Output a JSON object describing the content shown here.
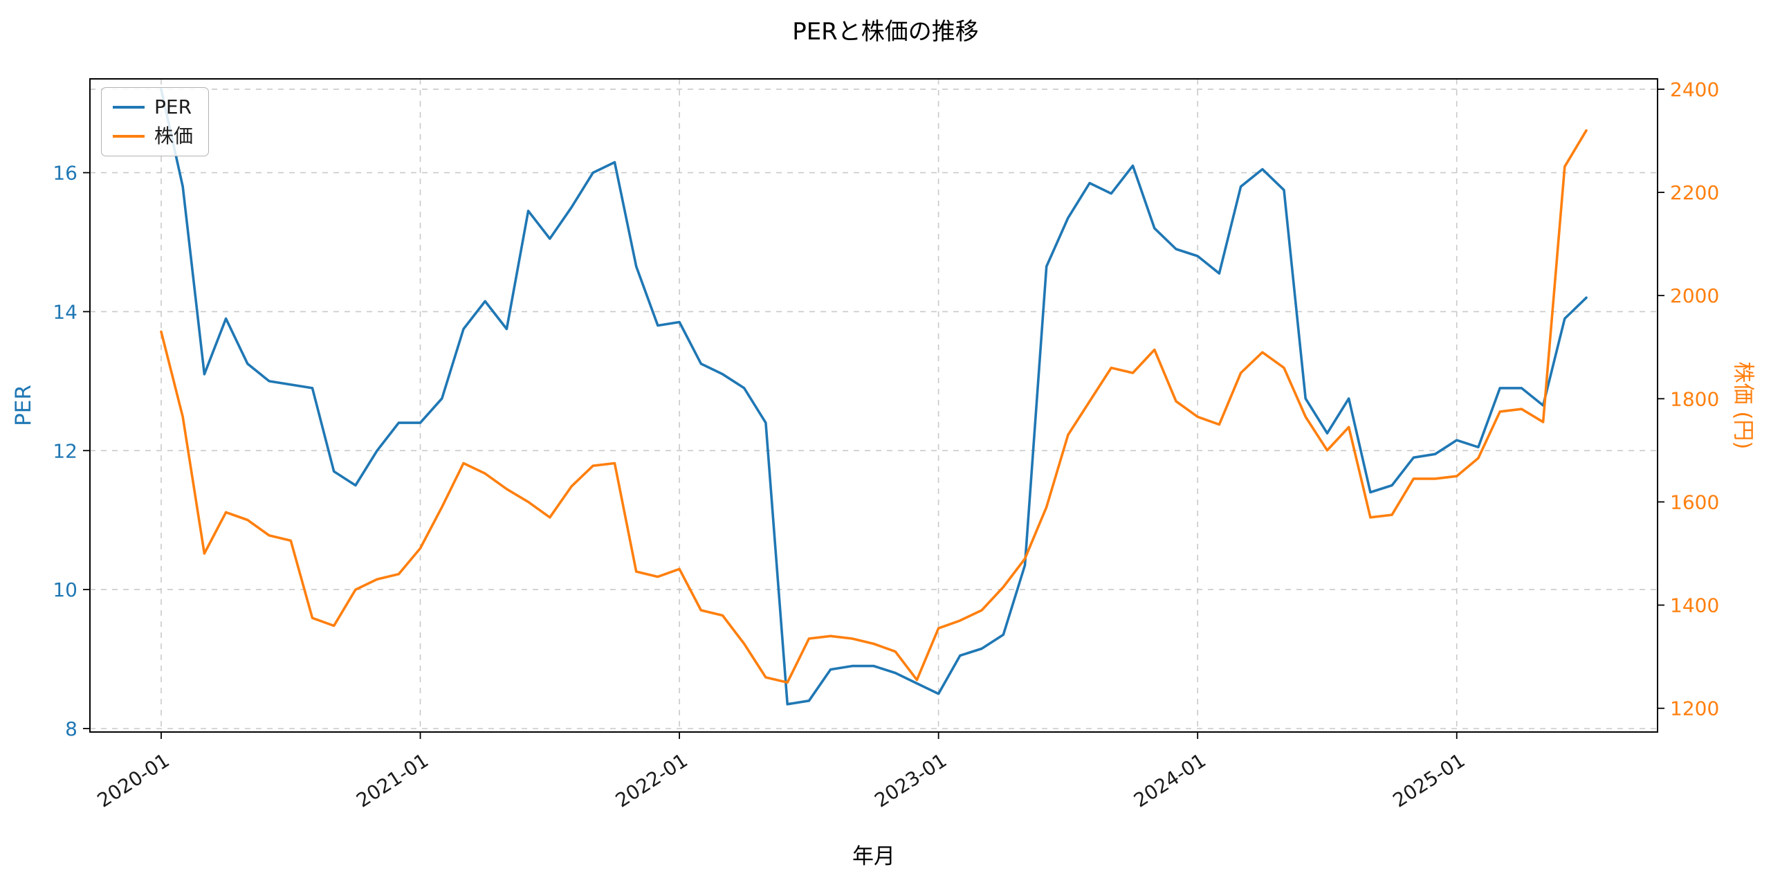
{
  "title": "PERと株価の推移",
  "chart_data": {
    "type": "line",
    "title": "PERと株価の推移",
    "xlabel": "年月",
    "ylabel_left": "PER",
    "ylabel_right": "株価 (円)",
    "grid": true,
    "legend_position": "upper-left",
    "grid_color": "#c9c9c9",
    "axis_color": "#000000",
    "tick_label_color_x": "#1a1a1a",
    "x_ticks": [
      "2020-01",
      "2021-01",
      "2022-01",
      "2023-01",
      "2024-01",
      "2025-01"
    ],
    "left_ticks": [
      8,
      10,
      12,
      14,
      16
    ],
    "right_ticks": [
      1200,
      1400,
      1600,
      1800,
      2000,
      2200,
      2400
    ],
    "right_grid_ticks": [
      2400
    ],
    "ylim_left": [
      7.95,
      17.35
    ],
    "ylim_right": [
      1154,
      2420
    ],
    "x": [
      "2020-01",
      "2020-02",
      "2020-03",
      "2020-04",
      "2020-05",
      "2020-06",
      "2020-07",
      "2020-08",
      "2020-09",
      "2020-10",
      "2020-11",
      "2020-12",
      "2021-01",
      "2021-02",
      "2021-03",
      "2021-04",
      "2021-05",
      "2021-06",
      "2021-07",
      "2021-08",
      "2021-09",
      "2021-10",
      "2021-11",
      "2021-12",
      "2022-01",
      "2022-02",
      "2022-03",
      "2022-04",
      "2022-05",
      "2022-06",
      "2022-07",
      "2022-08",
      "2022-09",
      "2022-10",
      "2022-11",
      "2022-12",
      "2023-01",
      "2023-02",
      "2023-03",
      "2023-04",
      "2023-05",
      "2023-06",
      "2023-07",
      "2023-08",
      "2023-09",
      "2023-10",
      "2023-11",
      "2023-12",
      "2024-01",
      "2024-02",
      "2024-03",
      "2024-04",
      "2024-05",
      "2024-06",
      "2024-07",
      "2024-08",
      "2024-09",
      "2024-10",
      "2024-11",
      "2024-12",
      "2025-01",
      "2025-02",
      "2025-03",
      "2025-04",
      "2025-05",
      "2025-06",
      "2025-07"
    ],
    "series": [
      {
        "name": "PER",
        "axis": "left",
        "color": "#1f77b4",
        "values": [
          17.2,
          15.8,
          13.1,
          13.9,
          13.25,
          13.0,
          12.95,
          12.9,
          11.7,
          11.5,
          12.0,
          12.4,
          12.4,
          12.75,
          13.75,
          14.15,
          13.75,
          15.45,
          15.05,
          15.5,
          16.0,
          16.15,
          14.65,
          13.8,
          13.85,
          13.25,
          13.1,
          12.9,
          12.4,
          8.35,
          8.4,
          8.85,
          8.9,
          8.9,
          8.8,
          8.65,
          8.5,
          9.05,
          9.15,
          9.35,
          10.35,
          14.65,
          15.35,
          15.85,
          15.7,
          16.1,
          15.2,
          14.9,
          14.8,
          14.55,
          15.8,
          16.05,
          15.75,
          12.75,
          12.25,
          12.75,
          11.4,
          11.5,
          11.9,
          11.95,
          12.15,
          12.05,
          12.9,
          12.9,
          12.65,
          13.9,
          14.2
        ]
      },
      {
        "name": "株価",
        "axis": "right",
        "color": "#ff7f0e",
        "values": [
          1930,
          1765,
          1500,
          1580,
          1565,
          1535,
          1525,
          1375,
          1360,
          1430,
          1450,
          1460,
          1510,
          1590,
          1675,
          1655,
          1625,
          1600,
          1570,
          1630,
          1670,
          1675,
          1465,
          1455,
          1470,
          1390,
          1380,
          1325,
          1260,
          1250,
          1335,
          1340,
          1335,
          1325,
          1310,
          1255,
          1355,
          1370,
          1390,
          1435,
          1490,
          1590,
          1730,
          1795,
          1860,
          1850,
          1895,
          1795,
          1765,
          1750,
          1850,
          1890,
          1860,
          1765,
          1700,
          1745,
          1570,
          1575,
          1645,
          1645,
          1650,
          1685,
          1775,
          1780,
          1755,
          2250,
          2320
        ]
      }
    ]
  }
}
